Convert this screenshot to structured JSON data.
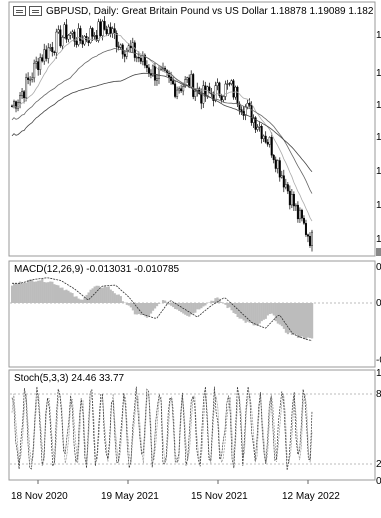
{
  "chart_data": [
    {
      "type": "candlestick",
      "title": "GBPUSD, Daily: Great Britain Pound vs US Dollar",
      "symbol": "GBPUSD",
      "timeframe": "Daily",
      "description": "Great Britain Pound vs US Dollar",
      "quotes": [
        "1.18878",
        "1.19089",
        "1.182"
      ],
      "overlays": [
        "moving average (fast)",
        "moving average (medium)",
        "moving average (slow)"
      ],
      "x_ticks": [
        "18 Nov 2020",
        "19 May 2021",
        "15 Nov 2021",
        "12 May 2022"
      ],
      "price_shape": [
        0.62,
        0.7,
        0.82,
        0.88,
        0.93,
        0.9,
        0.93,
        0.95,
        0.88,
        0.84,
        0.78,
        0.74,
        0.7,
        0.72,
        0.66,
        0.68,
        0.7,
        0.62,
        0.55,
        0.45,
        0.3,
        0.15,
        0.05
      ]
    },
    {
      "type": "bar",
      "title": "MACD(12,26,9) -0.013031 -0.010785",
      "name": "MACD",
      "params": "12,26,9",
      "values_text": [
        "-0.013031",
        "-0.010785"
      ],
      "histogram_shape": [
        0.35,
        0.42,
        0.45,
        0.4,
        0.25,
        0.05,
        0.3,
        0.32,
        0.1,
        -0.2,
        -0.28,
        0.05,
        -0.1,
        -0.25,
        -0.05,
        0.1,
        -0.12,
        -0.35,
        -0.45,
        -0.2,
        -0.55,
        -0.65,
        -0.7
      ]
    },
    {
      "type": "line",
      "title": "Stoch(5,3,3) 24.46 33.77",
      "name": "Stoch",
      "params": "5,3,3",
      "values_text": [
        "24.46",
        "33.77"
      ],
      "levels": [
        80,
        20
      ],
      "ylim": [
        0,
        100
      ]
    }
  ],
  "main_header": "GBPUSD, Daily:  Great Britain Pound vs US Dollar  1.18878 1.19089 1.182",
  "macd_header": "MACD(12,26,9) -0.013031 -0.010785",
  "stoch_header": "Stoch(5,3,3) 24.46 33.77",
  "x_labels": [
    "18 Nov 2020",
    "19 May 2021",
    "15 Nov 2021",
    "12 May 2022"
  ],
  "right_scale": {
    "main": [
      "1",
      "1",
      "1",
      "1",
      "1",
      "1",
      "1"
    ],
    "macd": [
      "0",
      "0",
      "-0"
    ],
    "stoch": [
      "1",
      "8",
      "2",
      "0"
    ]
  },
  "colors": {
    "candle": "#000000",
    "ma_fast": "#aaaaaa",
    "ma_med": "#666666",
    "ma_slow": "#444444",
    "hist": "#bcbcbc",
    "signal": "#333333",
    "grid": "#cfcfcf"
  }
}
